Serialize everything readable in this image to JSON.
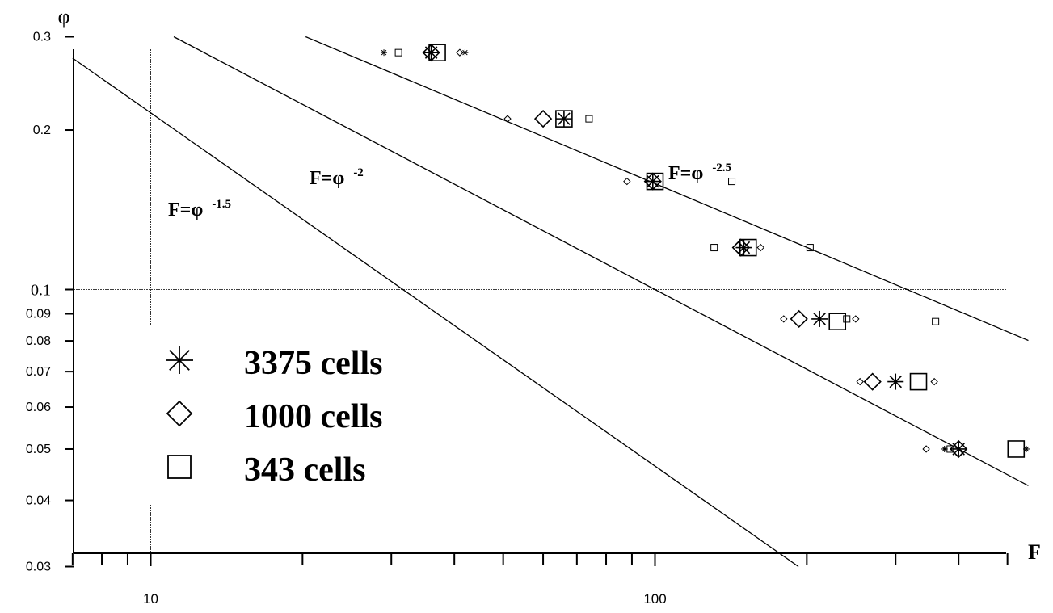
{
  "chart_data": {
    "type": "scatter",
    "x_scale": "log",
    "y_scale": "log",
    "xlabel": "F",
    "ylabel": "φ",
    "xlim": [
      7,
      550
    ],
    "ylim": [
      0.03,
      0.3
    ],
    "x_ticks": [
      "10",
      "100"
    ],
    "y_ticks": [
      "0.03",
      "0.04",
      "0.05",
      "0.06",
      "0.07",
      "0.08",
      "0.09",
      "0.1",
      "0.2",
      "0.3"
    ],
    "grid": "major",
    "legend_position": "left",
    "series": [
      {
        "name": "3375 cells",
        "marker": "asterisk",
        "points": [
          [
            36,
            0.28
          ],
          [
            66,
            0.21
          ],
          [
            99,
            0.16
          ],
          [
            150,
            0.12
          ],
          [
            212,
            0.088
          ],
          [
            300,
            0.067
          ],
          [
            400,
            0.05
          ]
        ]
      },
      {
        "name": "1000 cells",
        "marker": "diamond",
        "points": [
          [
            36,
            0.28
          ],
          [
            60,
            0.21
          ],
          [
            99,
            0.16
          ],
          [
            148,
            0.12
          ],
          [
            193,
            0.088
          ],
          [
            270,
            0.067
          ],
          [
            400,
            0.05
          ]
        ]
      },
      {
        "name": "343 cells",
        "marker": "square",
        "points": [
          [
            37,
            0.28
          ],
          [
            66,
            0.21
          ],
          [
            100,
            0.16
          ],
          [
            153,
            0.12
          ],
          [
            230,
            0.087
          ],
          [
            333,
            0.067
          ],
          [
            520,
            0.05
          ]
        ]
      }
    ],
    "small_markers": [
      [
        "asterisk",
        29,
        0.28
      ],
      [
        "square",
        31,
        0.28
      ],
      [
        "diamond",
        41,
        0.28
      ],
      [
        "asterisk",
        42,
        0.28
      ],
      [
        "diamond",
        51,
        0.21
      ],
      [
        "square",
        74,
        0.21
      ],
      [
        "diamond",
        88,
        0.16
      ],
      [
        "square",
        142,
        0.16
      ],
      [
        "square",
        131,
        0.12
      ],
      [
        "diamond",
        162,
        0.12
      ],
      [
        "square",
        203,
        0.12
      ],
      [
        "diamond",
        180,
        0.088
      ],
      [
        "square",
        240,
        0.088
      ],
      [
        "diamond",
        250,
        0.088
      ],
      [
        "square",
        360,
        0.087
      ],
      [
        "diamond",
        255,
        0.067
      ],
      [
        "diamond",
        358,
        0.067
      ],
      [
        "diamond",
        345,
        0.05
      ],
      [
        "asterisk",
        375,
        0.05
      ],
      [
        "square",
        385,
        0.05
      ],
      [
        "asterisk",
        545,
        0.05
      ]
    ],
    "reference_lines": [
      {
        "label": "F=φ",
        "exponent": "-1.5",
        "power": -1.5
      },
      {
        "label": "F=φ",
        "exponent": "-2",
        "power": -2
      },
      {
        "label": "F=φ",
        "exponent": "-2.5",
        "power": -2.5
      }
    ]
  }
}
